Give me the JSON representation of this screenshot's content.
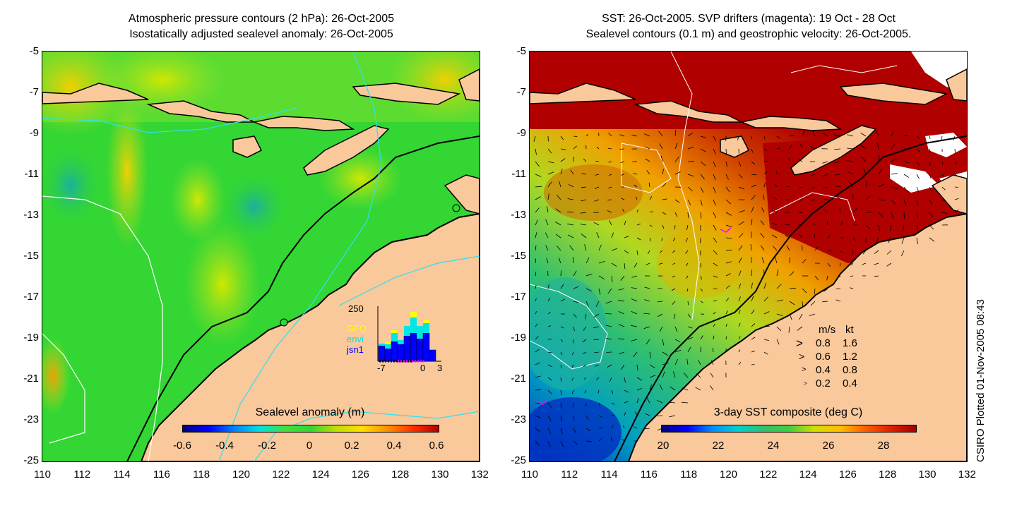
{
  "left_panel": {
    "title_line1": "Atmospheric pressure contours (2 hPa): 26-Oct-2005",
    "title_line2": "Isostatically adjusted sealevel anomaly: 26-Oct-2005",
    "colorbar": {
      "title": "Sealevel anomaly (m)",
      "ticks": [
        "-0.6",
        "-0.4",
        "-0.2",
        "0",
        "0.2",
        "0.4",
        "0.6"
      ]
    },
    "inset": {
      "ymax_label": "250",
      "satellites": [
        {
          "name": "GFO",
          "color": "#ffff00"
        },
        {
          "name": "envi",
          "color": "#00e5e5"
        },
        {
          "name": "jsn1",
          "color": "#0000ff"
        }
      ],
      "x_ticks": [
        "-7",
        "0",
        "3"
      ]
    }
  },
  "right_panel": {
    "title_line1": "SST: 26-Oct-2005. SVP drifters (magenta): 19 Oct - 28 Oct",
    "title_line2": "Sealevel contours (0.1 m) and geostrophic velocity: 26-Oct-2005.",
    "colorbar": {
      "title": "3-day SST composite (deg C)",
      "ticks": [
        "20",
        "22",
        "24",
        "26",
        "28"
      ]
    },
    "velocity_legend": {
      "header_ms": "m/s",
      "header_kt": "kt",
      "rows": [
        {
          "ms": "0.8",
          "kt": "1.6"
        },
        {
          "ms": "0.6",
          "kt": "1.2"
        },
        {
          "ms": "0.4",
          "kt": "0.8"
        },
        {
          "ms": "0.2",
          "kt": "0.4"
        }
      ]
    }
  },
  "axes": {
    "y_ticks": [
      "-5",
      "-7",
      "-9",
      "-11",
      "-13",
      "-15",
      "-17",
      "-19",
      "-21",
      "-23",
      "-25"
    ],
    "x_ticks": [
      "110",
      "112",
      "114",
      "116",
      "118",
      "120",
      "122",
      "124",
      "126",
      "128",
      "130",
      "132"
    ]
  },
  "credit": "CSIRO Plotted 01-Nov-2005 08:43",
  "colors": {
    "land": "#f9c89b",
    "sla_sea": "#33d633",
    "sst_warm": "#b80000",
    "coast": "#000000"
  }
}
